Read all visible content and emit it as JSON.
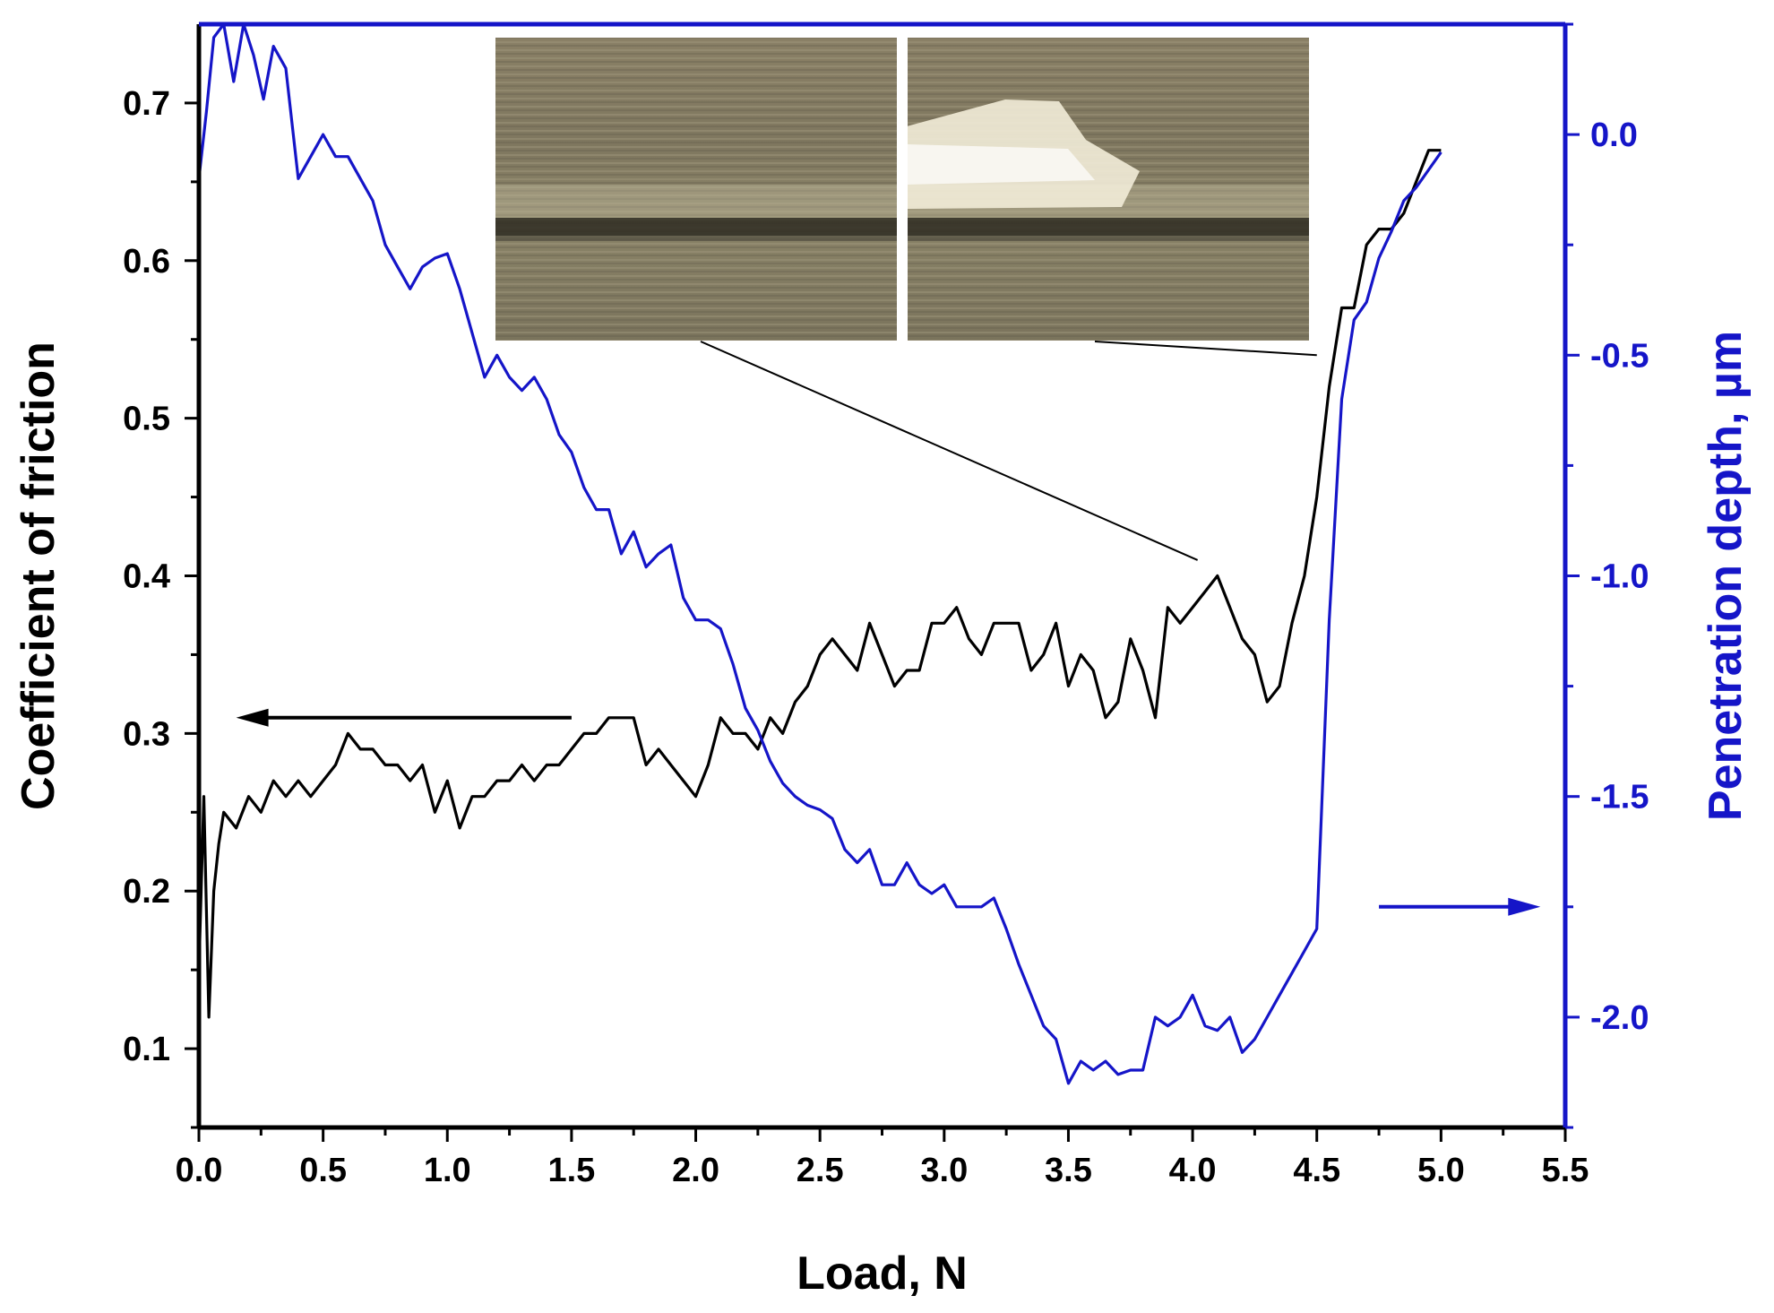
{
  "chart_data": {
    "type": "line",
    "title": "",
    "xlabel": "Load, N",
    "ylabel_left": "Coefficient of friction",
    "ylabel_right": "Penetration depth, µm",
    "xlim": [
      0.0,
      5.5
    ],
    "ylim_left": [
      0.05,
      0.75
    ],
    "ylim_right": [
      -2.25,
      0.25
    ],
    "x_ticks": [
      "0.0",
      "0.5",
      "1.0",
      "1.5",
      "2.0",
      "2.5",
      "3.0",
      "3.5",
      "4.0",
      "4.5",
      "5.0",
      "5.5"
    ],
    "y_left_ticks": [
      "0.1",
      "0.2",
      "0.3",
      "0.4",
      "0.5",
      "0.6",
      "0.7"
    ],
    "y_right_ticks": [
      "-2.0",
      "-1.5",
      "-1.0",
      "-0.5",
      "0.0"
    ],
    "grid": false,
    "legend": "none",
    "colors": {
      "friction": "#000000",
      "depth": "#1515c8",
      "right_axis": "#1515c8"
    },
    "series": [
      {
        "axis": "left",
        "x": [
          0.0,
          0.02,
          0.04,
          0.06,
          0.08,
          0.1,
          0.15,
          0.2,
          0.25,
          0.3,
          0.35,
          0.4,
          0.45,
          0.5,
          0.55,
          0.6,
          0.65,
          0.7,
          0.75,
          0.8,
          0.85,
          0.9,
          0.95,
          1.0,
          1.05,
          1.1,
          1.15,
          1.2,
          1.25,
          1.3,
          1.35,
          1.4,
          1.45,
          1.5,
          1.55,
          1.6,
          1.65,
          1.7,
          1.75,
          1.8,
          1.85,
          1.9,
          1.95,
          2.0,
          2.05,
          2.1,
          2.15,
          2.2,
          2.25,
          2.3,
          2.35,
          2.4,
          2.45,
          2.5,
          2.55,
          2.6,
          2.65,
          2.7,
          2.75,
          2.8,
          2.85,
          2.9,
          2.95,
          3.0,
          3.05,
          3.1,
          3.15,
          3.2,
          3.25,
          3.3,
          3.35,
          3.4,
          3.45,
          3.5,
          3.55,
          3.6,
          3.65,
          3.7,
          3.75,
          3.8,
          3.85,
          3.9,
          3.95,
          4.0,
          4.05,
          4.1,
          4.15,
          4.2,
          4.25,
          4.3,
          4.35,
          4.4,
          4.45,
          4.5,
          4.55,
          4.6,
          4.65,
          4.7,
          4.75,
          4.8,
          4.85,
          4.9,
          4.95,
          5.0
        ],
        "values": [
          0.15,
          0.26,
          0.12,
          0.2,
          0.23,
          0.25,
          0.24,
          0.26,
          0.25,
          0.27,
          0.26,
          0.27,
          0.26,
          0.27,
          0.28,
          0.3,
          0.29,
          0.29,
          0.28,
          0.28,
          0.27,
          0.28,
          0.25,
          0.27,
          0.24,
          0.26,
          0.26,
          0.27,
          0.27,
          0.28,
          0.27,
          0.28,
          0.28,
          0.29,
          0.3,
          0.3,
          0.31,
          0.31,
          0.31,
          0.28,
          0.29,
          0.28,
          0.27,
          0.26,
          0.28,
          0.31,
          0.3,
          0.3,
          0.29,
          0.31,
          0.3,
          0.32,
          0.33,
          0.35,
          0.36,
          0.35,
          0.34,
          0.37,
          0.35,
          0.33,
          0.34,
          0.34,
          0.37,
          0.37,
          0.38,
          0.36,
          0.35,
          0.37,
          0.37,
          0.37,
          0.34,
          0.35,
          0.37,
          0.33,
          0.35,
          0.34,
          0.31,
          0.32,
          0.36,
          0.34,
          0.31,
          0.38,
          0.37,
          0.38,
          0.39,
          0.4,
          0.38,
          0.36,
          0.35,
          0.32,
          0.33,
          0.37,
          0.4,
          0.45,
          0.52,
          0.57,
          0.57,
          0.61,
          0.62,
          0.62,
          0.63,
          0.65,
          0.67,
          0.67
        ]
      },
      {
        "axis": "right",
        "x": [
          0.0,
          0.03,
          0.06,
          0.1,
          0.14,
          0.18,
          0.22,
          0.26,
          0.3,
          0.35,
          0.4,
          0.45,
          0.5,
          0.55,
          0.6,
          0.65,
          0.7,
          0.75,
          0.8,
          0.85,
          0.9,
          0.95,
          1.0,
          1.05,
          1.1,
          1.15,
          1.2,
          1.25,
          1.3,
          1.35,
          1.4,
          1.45,
          1.5,
          1.55,
          1.6,
          1.65,
          1.7,
          1.75,
          1.8,
          1.85,
          1.9,
          1.95,
          2.0,
          2.05,
          2.1,
          2.15,
          2.2,
          2.25,
          2.3,
          2.35,
          2.4,
          2.45,
          2.5,
          2.55,
          2.6,
          2.65,
          2.7,
          2.75,
          2.8,
          2.85,
          2.9,
          2.95,
          3.0,
          3.05,
          3.1,
          3.15,
          3.2,
          3.25,
          3.3,
          3.35,
          3.4,
          3.45,
          3.5,
          3.55,
          3.6,
          3.65,
          3.7,
          3.75,
          3.8,
          3.85,
          3.9,
          3.95,
          4.0,
          4.05,
          4.1,
          4.15,
          4.2,
          4.25,
          4.3,
          4.35,
          4.4,
          4.45,
          4.5,
          4.55,
          4.6,
          4.65,
          4.7,
          4.75,
          4.8,
          4.85,
          4.9,
          4.95,
          5.0
        ],
        "values": [
          -0.1,
          0.05,
          0.22,
          0.25,
          0.12,
          0.25,
          0.18,
          0.08,
          0.2,
          0.15,
          -0.1,
          -0.05,
          0.0,
          -0.05,
          -0.05,
          -0.1,
          -0.15,
          -0.25,
          -0.3,
          -0.35,
          -0.3,
          -0.28,
          -0.27,
          -0.35,
          -0.45,
          -0.55,
          -0.5,
          -0.55,
          -0.58,
          -0.55,
          -0.6,
          -0.68,
          -0.72,
          -0.8,
          -0.85,
          -0.85,
          -0.95,
          -0.9,
          -0.98,
          -0.95,
          -0.93,
          -1.05,
          -1.1,
          -1.1,
          -1.12,
          -1.2,
          -1.3,
          -1.35,
          -1.42,
          -1.47,
          -1.5,
          -1.52,
          -1.53,
          -1.55,
          -1.62,
          -1.65,
          -1.62,
          -1.7,
          -1.7,
          -1.65,
          -1.7,
          -1.72,
          -1.7,
          -1.75,
          -1.75,
          -1.75,
          -1.73,
          -1.8,
          -1.88,
          -1.95,
          -2.02,
          -2.05,
          -2.15,
          -2.1,
          -2.12,
          -2.1,
          -2.13,
          -2.12,
          -2.12,
          -2.0,
          -2.02,
          -2.0,
          -1.95,
          -2.02,
          -2.03,
          -2.0,
          -2.08,
          -2.05,
          -2.0,
          -1.95,
          -1.9,
          -1.85,
          -1.8,
          -1.1,
          -0.6,
          -0.42,
          -0.38,
          -0.28,
          -0.22,
          -0.15,
          -0.12,
          -0.08,
          -0.04
        ]
      }
    ],
    "annotations": [
      {
        "kind": "arrow",
        "direction": "left",
        "axis": "left",
        "x_from": 1.5,
        "x_to": 0.15,
        "y": 0.31
      },
      {
        "kind": "arrow",
        "direction": "right",
        "axis": "right",
        "x_from": 4.75,
        "x_to": 5.4,
        "y": -1.75
      },
      {
        "kind": "micrograph",
        "name": "wear-track-micrograph-1",
        "points_to_x": 4.02,
        "points_to_y": 0.41
      },
      {
        "kind": "micrograph",
        "name": "wear-track-micrograph-2",
        "points_to_x": 4.5,
        "points_to_y": 0.54
      }
    ]
  }
}
